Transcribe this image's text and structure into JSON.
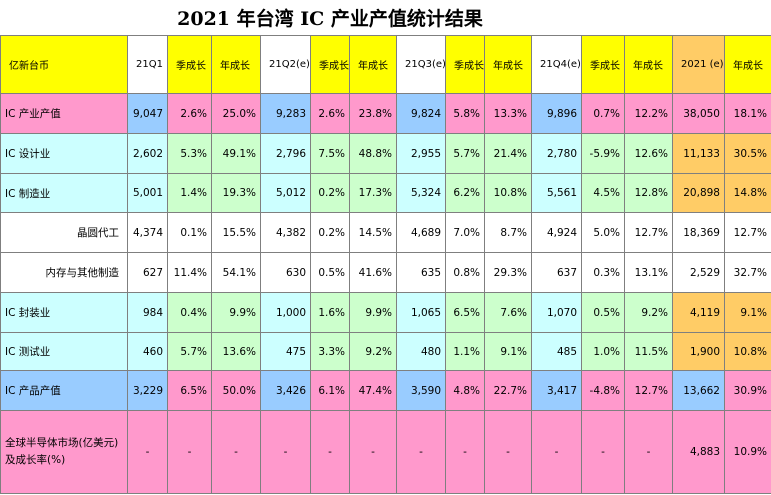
{
  "title": "2021 年台湾 IC 产业产值统计结果",
  "table": {
    "header": [
      "亿新台币",
      "21Q1",
      "季成长",
      "年成长",
      "21Q2(e)",
      "季成长",
      "年成长",
      "21Q3(e)",
      "季成长",
      "年成长",
      "21Q4(e)",
      "季成长",
      "年成长",
      "2021 (e)",
      "年成长"
    ],
    "rows": [
      [
        "IC 产业产值",
        "9,047",
        "2.6%",
        "25.0%",
        "9,283",
        "2.6%",
        "23.8%",
        "9,824",
        "5.8%",
        "13.3%",
        "9,896",
        "0.7%",
        "12.2%",
        "38,050",
        "18.1%"
      ],
      [
        "IC 设计业",
        "2,602",
        "5.3%",
        "49.1%",
        "2,796",
        "7.5%",
        "48.8%",
        "2,955",
        "5.7%",
        "21.4%",
        "2,780",
        "-5.9%",
        "12.6%",
        "11,133",
        "30.5%"
      ],
      [
        "IC 制造业",
        "5,001",
        "1.4%",
        "19.3%",
        "5,012",
        "0.2%",
        "17.3%",
        "5,324",
        "6.2%",
        "10.8%",
        "5,561",
        "4.5%",
        "12.8%",
        "20,898",
        "14.8%"
      ],
      [
        "晶圆代工",
        "4,374",
        "0.1%",
        "15.5%",
        "4,382",
        "0.2%",
        "14.5%",
        "4,689",
        "7.0%",
        "8.7%",
        "4,924",
        "5.0%",
        "12.7%",
        "18,369",
        "12.7%"
      ],
      [
        "内存与其他制造",
        "627",
        "11.4%",
        "54.1%",
        "630",
        "0.5%",
        "41.6%",
        "635",
        "0.8%",
        "29.3%",
        "637",
        "0.3%",
        "13.1%",
        "2,529",
        "32.7%"
      ],
      [
        "IC 封装业",
        "984",
        "0.4%",
        "9.9%",
        "1,000",
        "1.6%",
        "9.9%",
        "1,065",
        "6.5%",
        "7.6%",
        "1,070",
        "0.5%",
        "9.2%",
        "4,119",
        "9.1%"
      ],
      [
        "IC 测试业",
        "460",
        "5.7%",
        "13.6%",
        "475",
        "3.3%",
        "9.2%",
        "480",
        "1.1%",
        "9.1%",
        "485",
        "1.0%",
        "11.5%",
        "1,900",
        "10.8%"
      ],
      [
        "IC 产品产值",
        "3,229",
        "6.5%",
        "50.0%",
        "3,426",
        "6.1%",
        "47.4%",
        "3,590",
        "4.8%",
        "22.7%",
        "3,417",
        "-4.8%",
        "12.7%",
        "13,662",
        "30.9%"
      ],
      [
        "全球半导体市场(亿美元)及成长率(%)",
        "-",
        "-",
        "-",
        "-",
        "-",
        "-",
        "-",
        "-",
        "-",
        "-",
        "-",
        "-",
        "4,883",
        "10.9%"
      ]
    ]
  }
}
